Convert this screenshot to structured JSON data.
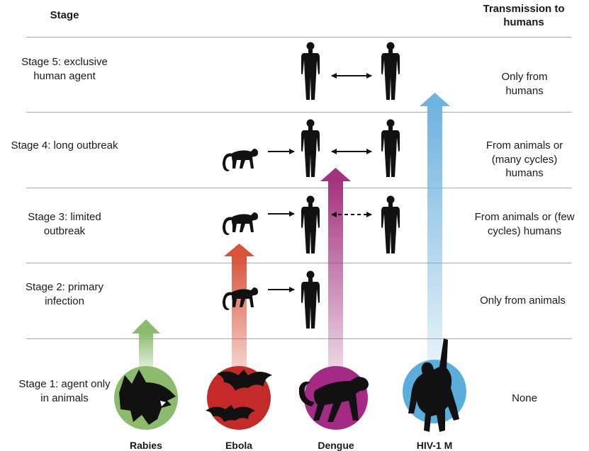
{
  "headers": {
    "stage": "Stage",
    "transmission": "Transmission to humans"
  },
  "rows": [
    {
      "stage": "Stage 5: exclusive human agent",
      "transmission": "Only from humans"
    },
    {
      "stage": "Stage 4: long outbreak",
      "transmission": "From animals or (many cycles) humans"
    },
    {
      "stage": "Stage 3: limited outbreak",
      "transmission": "From animals or (few cycles) humans"
    },
    {
      "stage": "Stage 2: primary infection",
      "transmission": "Only from animals"
    },
    {
      "stage": "Stage 1: agent only in animals",
      "transmission": "None"
    }
  ],
  "pathogens": [
    {
      "name": "Rabies",
      "reaches_stage": 1,
      "color": "#8cbb6d",
      "icon": "wolf-icon"
    },
    {
      "name": "Ebola",
      "reaches_stage": 3,
      "color": "#c42a27",
      "icon": "bat-icon"
    },
    {
      "name": "Dengue",
      "reaches_stage": 4,
      "color": "#a42a86",
      "icon": "monkey-icon"
    },
    {
      "name": "HIV-1 M",
      "reaches_stage": 5,
      "color": "#5aaedc",
      "icon": "chimpanzee-icon"
    }
  ],
  "colors": {
    "rabies_arrow": "#8cbb6d",
    "ebola_arrow": "#d9533a",
    "dengue_arrow": "#a3337f",
    "hiv_arrow": "#6fb3e0",
    "divider": "#a8a8a8"
  }
}
